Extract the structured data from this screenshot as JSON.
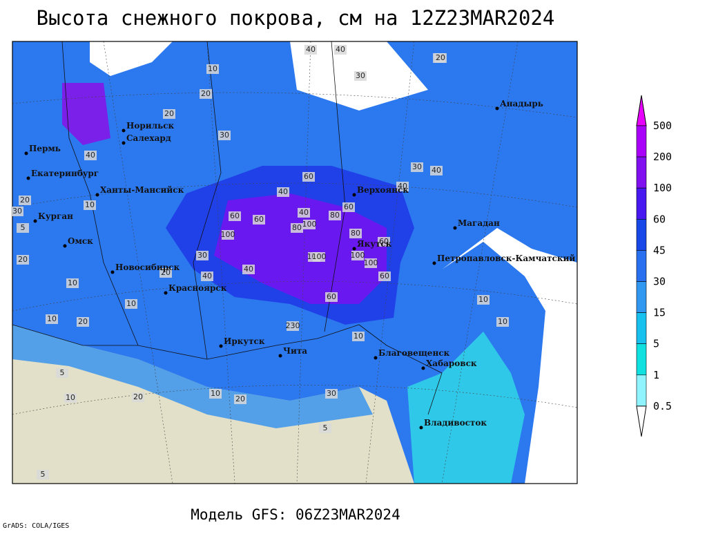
{
  "title": "Высота снежного покрова, см на 12Z23MAR2024",
  "footer": "Модель GFS: 06Z23MAR2024",
  "credit": "GrADS: COLA/IGES",
  "cities": [
    "Норильск",
    "Салехард",
    "Пермь",
    "Екатеринбург",
    "Ханты-Мансийск",
    "Курган",
    "Омск",
    "Новосибирск",
    "Красноярск",
    "Иркутск",
    "Чита",
    "Верхоянск",
    "Якутск",
    "Магадан",
    "Анадырь",
    "Петропавловск-Камчатский",
    "Благовещенск",
    "Хабаровск",
    "Владивосток"
  ],
  "contour_labels": [
    40,
    40,
    30,
    30,
    20,
    30,
    10,
    20,
    40,
    20,
    30,
    60,
    100,
    60,
    60,
    40,
    40,
    60,
    80,
    100,
    100,
    80,
    60,
    100,
    80,
    100,
    100,
    60,
    60,
    40,
    30,
    40,
    20,
    10,
    10,
    10,
    20,
    10,
    20,
    5,
    10,
    10,
    5,
    10,
    5,
    30,
    20,
    10,
    40,
    20,
    30,
    40,
    230,
    20,
    10,
    5
  ],
  "colorbar": {
    "levels": [
      500,
      200,
      100,
      60,
      45,
      30,
      15,
      5,
      1,
      0.5
    ],
    "colors": [
      "#e800ff",
      "#a800f8",
      "#8010f0",
      "#4818f0",
      "#1848e8",
      "#2870f0",
      "#3098f0",
      "#18c0f0",
      "#10e0e0",
      "#90f4ff",
      "#ffffff"
    ]
  }
}
